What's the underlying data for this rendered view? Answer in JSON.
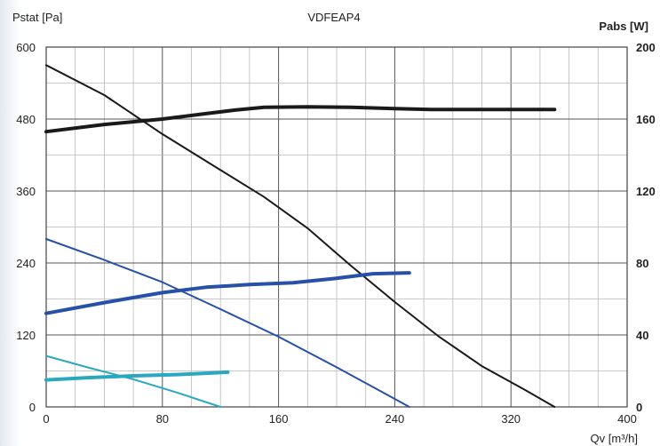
{
  "chart_data": {
    "type": "line",
    "title": "VDFEAP4",
    "xlabel": "Qv [m³/h]",
    "ylabel_left": "Pstat [Pa]",
    "ylabel_right": "Pabs [W]",
    "xlim": [
      0,
      400
    ],
    "ylim_left": [
      0,
      600
    ],
    "ylim_right": [
      0,
      200
    ],
    "x_ticks": [
      "0",
      "80",
      "160",
      "240",
      "320",
      "400"
    ],
    "y_ticks_left": [
      "0",
      "120",
      "240",
      "360",
      "480",
      "600"
    ],
    "y_ticks_right": [
      "0",
      "40",
      "80",
      "120",
      "160",
      "200"
    ],
    "grid": true,
    "series": [
      {
        "axis": "left",
        "color": "#1a1a1a",
        "width": 2,
        "points": [
          [
            0,
            570
          ],
          [
            40,
            520
          ],
          [
            80,
            455
          ],
          [
            120,
            395
          ],
          [
            150,
            350
          ],
          [
            180,
            298
          ],
          [
            210,
            235
          ],
          [
            240,
            175
          ],
          [
            270,
            118
          ],
          [
            300,
            68
          ],
          [
            330,
            28
          ],
          [
            350,
            0
          ]
        ]
      },
      {
        "axis": "right",
        "color": "#1a1a1a",
        "width": 4,
        "points": [
          [
            0,
            153
          ],
          [
            40,
            157
          ],
          [
            80,
            160
          ],
          [
            110,
            163
          ],
          [
            130,
            165
          ],
          [
            150,
            166.5
          ],
          [
            180,
            166.8
          ],
          [
            210,
            166.5
          ],
          [
            240,
            165.8
          ],
          [
            265,
            165.3
          ],
          [
            300,
            165.3
          ],
          [
            350,
            165.3
          ]
        ]
      },
      {
        "axis": "left",
        "color": "#2750a8",
        "width": 2,
        "points": [
          [
            0,
            280
          ],
          [
            40,
            245
          ],
          [
            80,
            208
          ],
          [
            120,
            163
          ],
          [
            160,
            117
          ],
          [
            200,
            66
          ],
          [
            235,
            20
          ],
          [
            250,
            0
          ]
        ]
      },
      {
        "axis": "right",
        "color": "#2750a8",
        "width": 4,
        "points": [
          [
            0,
            52
          ],
          [
            40,
            58
          ],
          [
            80,
            63.5
          ],
          [
            110,
            66.5
          ],
          [
            140,
            68
          ],
          [
            170,
            69
          ],
          [
            200,
            71.5
          ],
          [
            225,
            74
          ],
          [
            250,
            74.5
          ]
        ]
      },
      {
        "axis": "left",
        "color": "#29a8bf",
        "width": 2,
        "points": [
          [
            0,
            85
          ],
          [
            30,
            65
          ],
          [
            60,
            46
          ],
          [
            90,
            24
          ],
          [
            120,
            0
          ]
        ]
      },
      {
        "axis": "right",
        "color": "#29a8bf",
        "width": 4,
        "points": [
          [
            0,
            15
          ],
          [
            30,
            16.3
          ],
          [
            60,
            17.3
          ],
          [
            90,
            18
          ],
          [
            110,
            18.7
          ],
          [
            125,
            19.3
          ]
        ]
      }
    ]
  }
}
